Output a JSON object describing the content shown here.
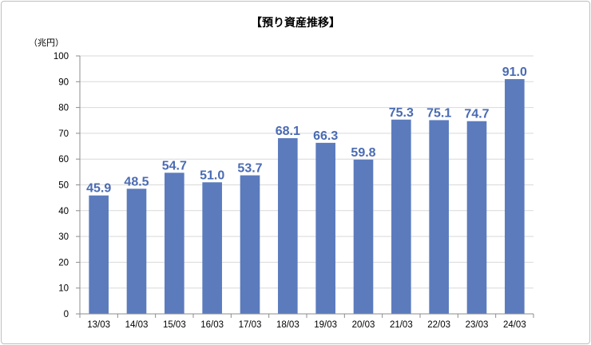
{
  "chart_data": {
    "type": "bar",
    "title": "【預り資産推移】",
    "unit_label": "（兆円）",
    "categories": [
      "13/03",
      "14/03",
      "15/03",
      "16/03",
      "17/03",
      "18/03",
      "19/03",
      "20/03",
      "21/03",
      "22/03",
      "23/03",
      "24/03"
    ],
    "values": [
      45.9,
      48.5,
      54.7,
      51.0,
      53.7,
      68.1,
      66.3,
      59.8,
      75.3,
      75.1,
      74.7,
      91.0
    ],
    "data_labels": [
      "45.9",
      "48.5",
      "54.7",
      "51.0",
      "53.7",
      "68.1",
      "66.3",
      "59.8",
      "75.3",
      "75.1",
      "74.7",
      "91.0"
    ],
    "y_ticks": [
      0,
      10,
      20,
      30,
      40,
      50,
      60,
      70,
      80,
      90,
      100
    ],
    "ylim": [
      0,
      100
    ],
    "grid": true,
    "legend": "none",
    "colors": {
      "bar": "#5b7bbd",
      "label": "#4a6bb3",
      "grid": "#d9d9d9",
      "axis": "#8c8c8c"
    }
  }
}
